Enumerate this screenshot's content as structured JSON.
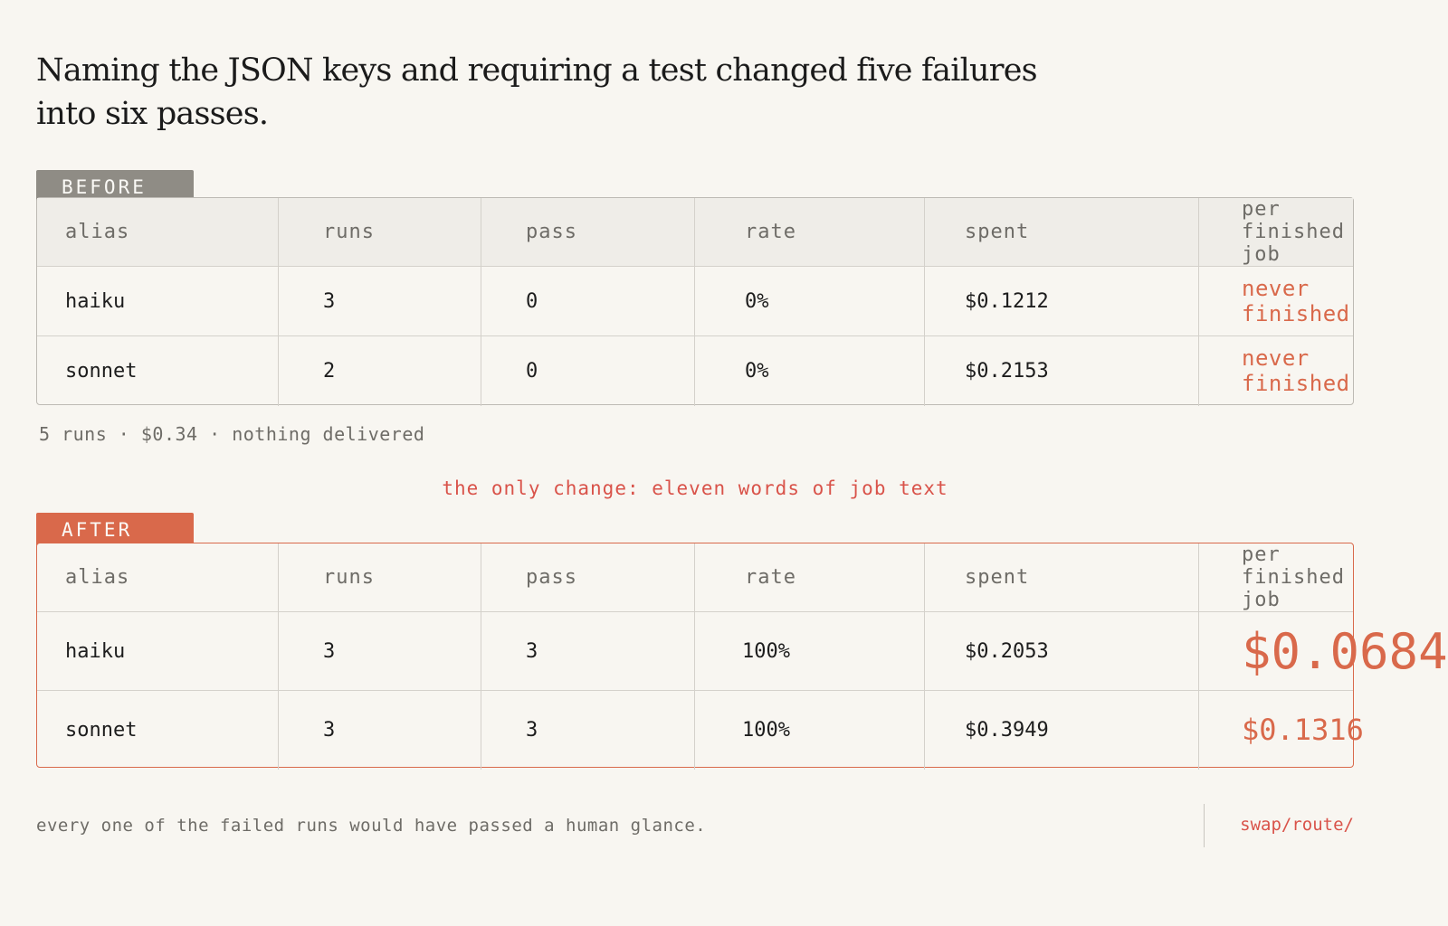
{
  "headline": "Naming the JSON keys and requiring a test changed five failures into six passes.",
  "columns": [
    "alias",
    "runs",
    "pass",
    "rate",
    "spent",
    "per finished job"
  ],
  "before": {
    "tag": "BEFORE",
    "rows": [
      {
        "alias": "haiku",
        "runs": "3",
        "pass": "0",
        "rate": "0%",
        "spent": "$0.1212",
        "per_job": "never finished"
      },
      {
        "alias": "sonnet",
        "runs": "2",
        "pass": "0",
        "rate": "0%",
        "spent": "$0.2153",
        "per_job": "never finished"
      }
    ],
    "summary": "5 runs · $0.34 · nothing delivered"
  },
  "change_note": "the only change: eleven words of job text",
  "after": {
    "tag": "AFTER",
    "rows": [
      {
        "alias": "haiku",
        "runs": "3",
        "pass": "3",
        "rate": "100%",
        "spent": "$0.2053",
        "per_job": "$0.0684"
      },
      {
        "alias": "sonnet",
        "runs": "3",
        "pass": "3",
        "rate": "100%",
        "spent": "$0.3949",
        "per_job": "$0.1316"
      }
    ]
  },
  "footer": {
    "note": "every one of the failed runs would have passed a human glance.",
    "brand": "swap/route/"
  },
  "colors": {
    "accent": "#d9694b",
    "muted_tag": "#8f8c85",
    "background": "#f8f6f1"
  }
}
